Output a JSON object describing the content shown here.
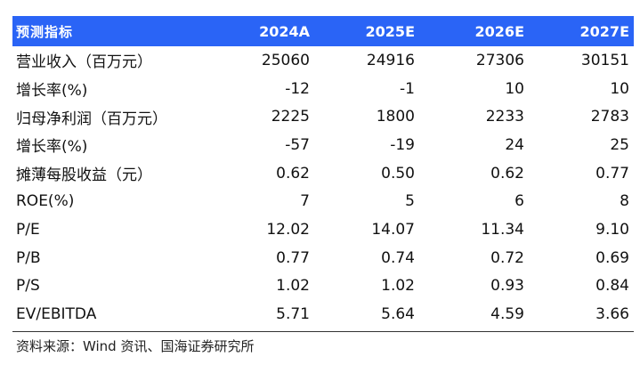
{
  "header": {
    "label": "预测指标",
    "years": [
      "2024A",
      "2025E",
      "2026E",
      "2027E"
    ]
  },
  "rows": [
    {
      "label": "营业收入（百万元）",
      "values": [
        "25060",
        "24916",
        "27306",
        "30151"
      ]
    },
    {
      "label": "增长率(%)",
      "values": [
        "-12",
        "-1",
        "10",
        "10"
      ]
    },
    {
      "label": "归母净利润（百万元）",
      "values": [
        "2225",
        "1800",
        "2233",
        "2783"
      ]
    },
    {
      "label": "增长率(%)",
      "values": [
        "-57",
        "-19",
        "24",
        "25"
      ]
    },
    {
      "label": "摊薄每股收益（元）",
      "values": [
        "0.62",
        "0.50",
        "0.62",
        "0.77"
      ]
    },
    {
      "label": "ROE(%)",
      "values": [
        "7",
        "5",
        "6",
        "8"
      ]
    },
    {
      "label": "P/E",
      "values": [
        "12.02",
        "14.07",
        "11.34",
        "9.10"
      ]
    },
    {
      "label": "P/B",
      "values": [
        "0.77",
        "0.74",
        "0.72",
        "0.69"
      ]
    },
    {
      "label": "P/S",
      "values": [
        "1.02",
        "1.02",
        "0.93",
        "0.84"
      ]
    },
    {
      "label": "EV/EBITDA",
      "values": [
        "5.71",
        "5.64",
        "4.59",
        "3.66"
      ]
    }
  ],
  "source": "资料来源：Wind 资讯、国海证券研究所",
  "colors": {
    "header_bg": "#2a64f6",
    "header_text": "#ffffff"
  }
}
